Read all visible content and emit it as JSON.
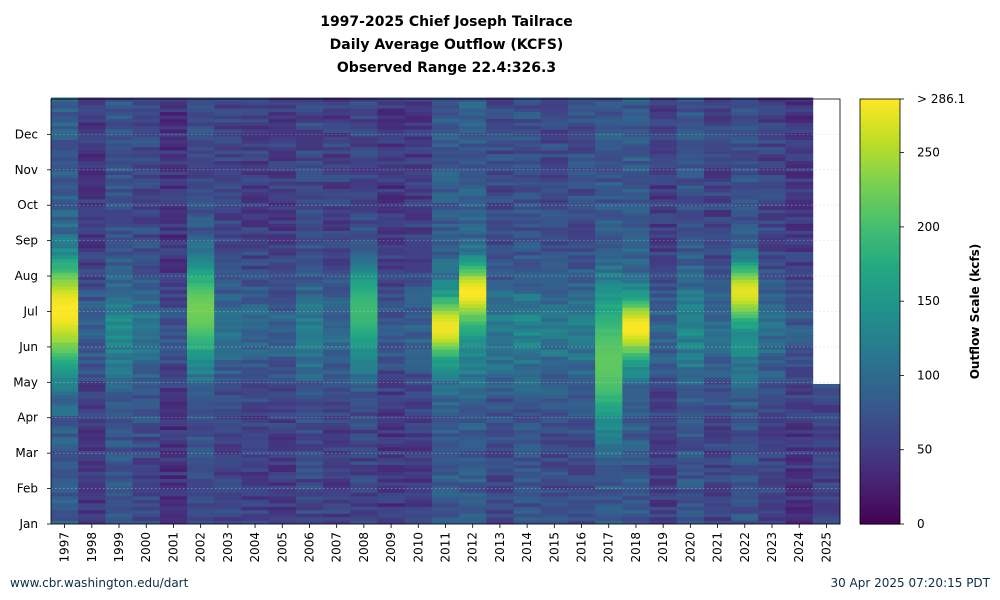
{
  "chart_data": {
    "type": "heatmap",
    "title": [
      "1997-2025 Chief Joseph Tailrace",
      "Daily Average Outflow (KCFS)",
      "Observed Range 22.4:326.3"
    ],
    "x": [
      "1997",
      "1998",
      "1999",
      "2000",
      "2001",
      "2002",
      "2003",
      "2004",
      "2005",
      "2006",
      "2007",
      "2008",
      "2009",
      "2010",
      "2011",
      "2012",
      "2013",
      "2014",
      "2015",
      "2016",
      "2017",
      "2018",
      "2019",
      "2020",
      "2021",
      "2022",
      "2023",
      "2024",
      "2025"
    ],
    "y_ticks": [
      "Jan",
      "Feb",
      "Mar",
      "Apr",
      "May",
      "Jun",
      "Jul",
      "Aug",
      "Sep",
      "Oct",
      "Nov",
      "Dec"
    ],
    "xlabel": "",
    "ylabel": "",
    "colorbar": {
      "label": "Outflow Scale (kcfs)",
      "ticks": [
        "0",
        "50",
        "100",
        "150",
        "200",
        "250",
        "> 286.1"
      ],
      "tick_values": [
        0,
        50,
        100,
        150,
        200,
        250,
        286.1
      ],
      "range": [
        0,
        286.1
      ],
      "colormap": "viridis"
    },
    "year_means_kcfs": [
      130,
      75,
      115,
      100,
      65,
      105,
      90,
      85,
      80,
      100,
      85,
      95,
      70,
      78,
      125,
      130,
      100,
      110,
      100,
      105,
      120,
      125,
      80,
      115,
      90,
      115,
      90,
      70,
      85
    ],
    "peaks": [
      {
        "year": "1997",
        "month": "Jun-Jul",
        "value": 286
      },
      {
        "year": "2011",
        "month": "Jun",
        "value": 280
      },
      {
        "year": "2012",
        "month": "Jul",
        "value": 286
      },
      {
        "year": "2017",
        "month": "Apr-Jun",
        "value": 215
      },
      {
        "year": "2018",
        "month": "Jun",
        "value": 286
      },
      {
        "year": "2022",
        "month": "Jul",
        "value": 275
      },
      {
        "year": "2002",
        "month": "Jun-Jul",
        "value": 225
      },
      {
        "year": "2008",
        "month": "Jun-Jul",
        "value": 195
      }
    ],
    "data_end": {
      "year": "2025",
      "month": "Apr",
      "day_of_year": 120
    },
    "grid": true,
    "colorbar_position": "right"
  },
  "footer": {
    "left": "www.cbr.washington.edu/dart",
    "right": "30 Apr 2025 07:20:15 PDT"
  }
}
